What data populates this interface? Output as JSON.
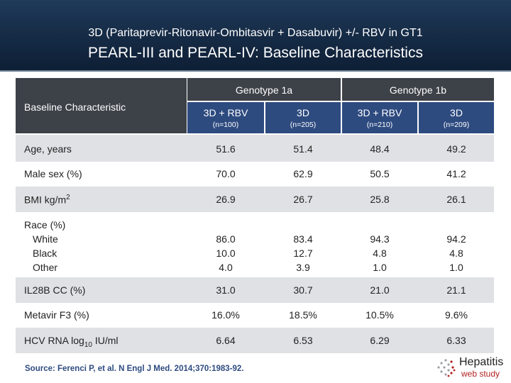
{
  "title": {
    "line1": "3D (Paritaprevir-Ritonavir-Ombitasvir + Dasabuvir) +/- RBV in GT1",
    "line2": "PEARL-III and PEARL-IV: Baseline Characteristics"
  },
  "table": {
    "corner_label": "Baseline Characteristic",
    "groups": [
      {
        "label": "Genotype 1a"
      },
      {
        "label": "Genotype 1b"
      }
    ],
    "arms": [
      {
        "label": "3D + RBV",
        "n": "(n=100)"
      },
      {
        "label": "3D",
        "n": "(n=205)"
      },
      {
        "label": "3D + RBV",
        "n": "(n=210)"
      },
      {
        "label": "3D",
        "n": "(n=209)"
      }
    ],
    "rows": {
      "age": {
        "label": "Age, years",
        "v": [
          "51.6",
          "51.4",
          "48.4",
          "49.2"
        ]
      },
      "male": {
        "label": "Male sex (%)",
        "v": [
          "70.0",
          "62.9",
          "50.5",
          "41.2"
        ]
      },
      "bmi": {
        "label": "BMI kg/m",
        "sup": "2",
        "v": [
          "26.9",
          "26.7",
          "25.8",
          "26.1"
        ]
      },
      "race": {
        "label": "Race (%)",
        "sub": [
          "White",
          "Black",
          "Other"
        ],
        "v": [
          [
            "86.0",
            "10.0",
            "4.0"
          ],
          [
            "83.4",
            "12.7",
            "3.9"
          ],
          [
            "94.3",
            "4.8",
            "1.0"
          ],
          [
            "94.2",
            "4.8",
            "1.0"
          ]
        ]
      },
      "il28b": {
        "label": "IL28B CC (%)",
        "v": [
          "31.0",
          "30.7",
          "21.0",
          "21.1"
        ]
      },
      "metavir": {
        "label": "Metavir F3 (%)",
        "v": [
          "16.0%",
          "18.5%",
          "10.5%",
          "9.6%"
        ]
      },
      "hcv": {
        "label": "HCV RNA log",
        "sub": "10",
        "suffix": " IU/ml",
        "v": [
          "6.64",
          "6.53",
          "6.29",
          "6.33"
        ]
      }
    }
  },
  "source": "Source: Ferenci P, et al. N Engl J Med. 2014;370:1983-92.",
  "logo": {
    "word1": "Hepatitis",
    "word2": "web study",
    "icon": "hepatitis-logo-icon"
  },
  "colors": {
    "header": "#1a3250",
    "dark_cell": "#3d4148",
    "blue_cell": "#2e4b80",
    "stripe": "#dfe1e4",
    "source_text": "#2e4b80"
  }
}
